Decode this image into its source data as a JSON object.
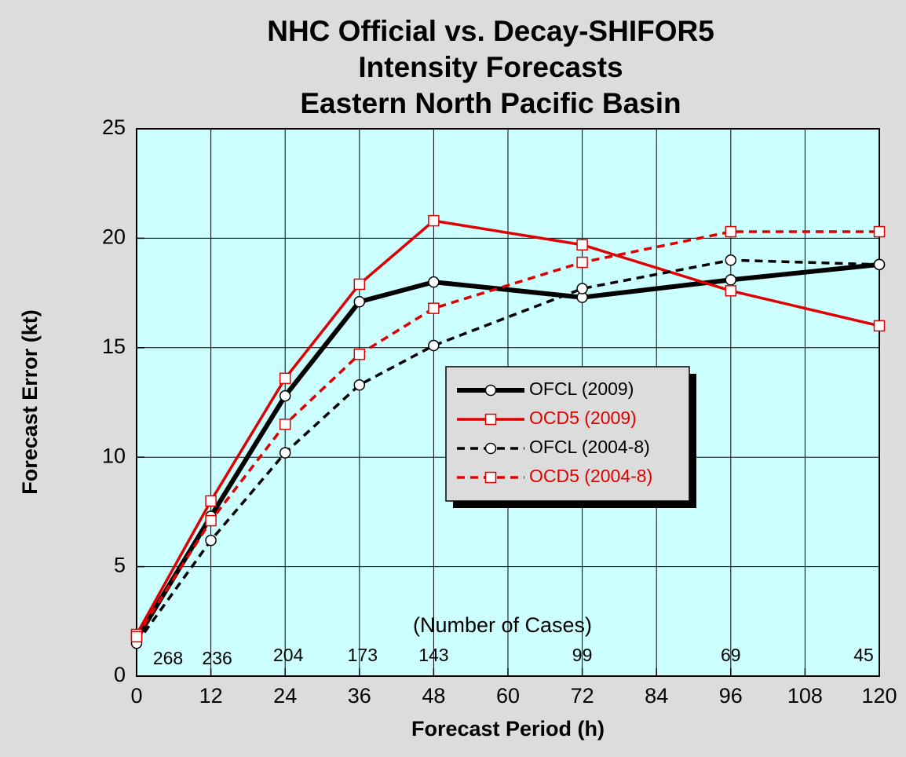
{
  "chart_data": {
    "type": "line",
    "title": [
      "NHC Official vs. Decay-SHIFOR5",
      "Intensity Forecasts",
      "Eastern North Pacific Basin"
    ],
    "x_label": "Forecast Period (h)",
    "y_label": "Forecast Error (kt)",
    "x": [
      0,
      12,
      24,
      36,
      48,
      72,
      96,
      120
    ],
    "series": [
      {
        "name": "OFCL (2009)",
        "color": "#000000",
        "style": "solid",
        "marker": "circle",
        "values": [
          1.7,
          7.3,
          12.8,
          17.1,
          18.0,
          17.3,
          18.1,
          18.8
        ]
      },
      {
        "name": "OCD5 (2009)",
        "color": "#e00000",
        "style": "solid",
        "marker": "square",
        "values": [
          1.9,
          8.0,
          13.6,
          17.9,
          20.8,
          19.7,
          17.6,
          16.0
        ]
      },
      {
        "name": "OFCL (2004-8)",
        "color": "#000000",
        "style": "dashed",
        "marker": "circle",
        "values": [
          1.5,
          6.2,
          10.2,
          13.3,
          15.1,
          17.7,
          19.0,
          18.8
        ]
      },
      {
        "name": "OCD5 (2004-8)",
        "color": "#e00000",
        "style": "dashed",
        "marker": "square",
        "values": [
          1.8,
          7.1,
          11.5,
          14.7,
          16.8,
          18.9,
          20.3,
          20.3
        ]
      }
    ],
    "cases_label": "(Number of Cases)",
    "cases": [
      268,
      236,
      204,
      173,
      143,
      99,
      69,
      45
    ],
    "xlim": [
      0,
      120
    ],
    "xticks": [
      0,
      12,
      24,
      36,
      48,
      60,
      72,
      84,
      96,
      108,
      120
    ],
    "ylim": [
      0,
      25
    ],
    "yticks": [
      0,
      5,
      10,
      15,
      20,
      25
    ],
    "grid": true,
    "legend": "center"
  }
}
